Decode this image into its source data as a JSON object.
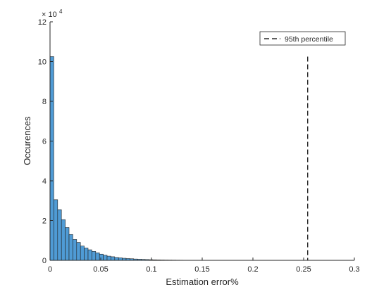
{
  "chart_data": {
    "type": "bar",
    "xlabel": "Estimation error%",
    "ylabel": "Occurences",
    "xlim": [
      0,
      0.3
    ],
    "ylim": [
      0,
      120000
    ],
    "x_ticks": [
      "0",
      "0.05",
      "0.1",
      "0.15",
      "0.2",
      "0.25",
      "0.3"
    ],
    "y_ticks": [
      "0",
      "2",
      "4",
      "6",
      "8",
      "10",
      "12"
    ],
    "y_exponent_base": "× 10",
    "y_exponent_power": "4",
    "bin_width": 0.00375,
    "bin_start": 0,
    "values": [
      102500,
      30500,
      25500,
      20500,
      16500,
      13000,
      10500,
      9000,
      7200,
      6200,
      5300,
      4500,
      3800,
      3100,
      2600,
      2100,
      1800,
      1450,
      1250,
      1050,
      900,
      800,
      650,
      550,
      470,
      400,
      330,
      270,
      230,
      190,
      160,
      140,
      120,
      100,
      85,
      70,
      60,
      50
    ],
    "bar_color": "#4f9bd5",
    "bar_edge_color": "#222222",
    "percentile_line": {
      "label": "95th percentile",
      "x": 0.254
    },
    "legend_position": "top-right",
    "grid": false
  }
}
